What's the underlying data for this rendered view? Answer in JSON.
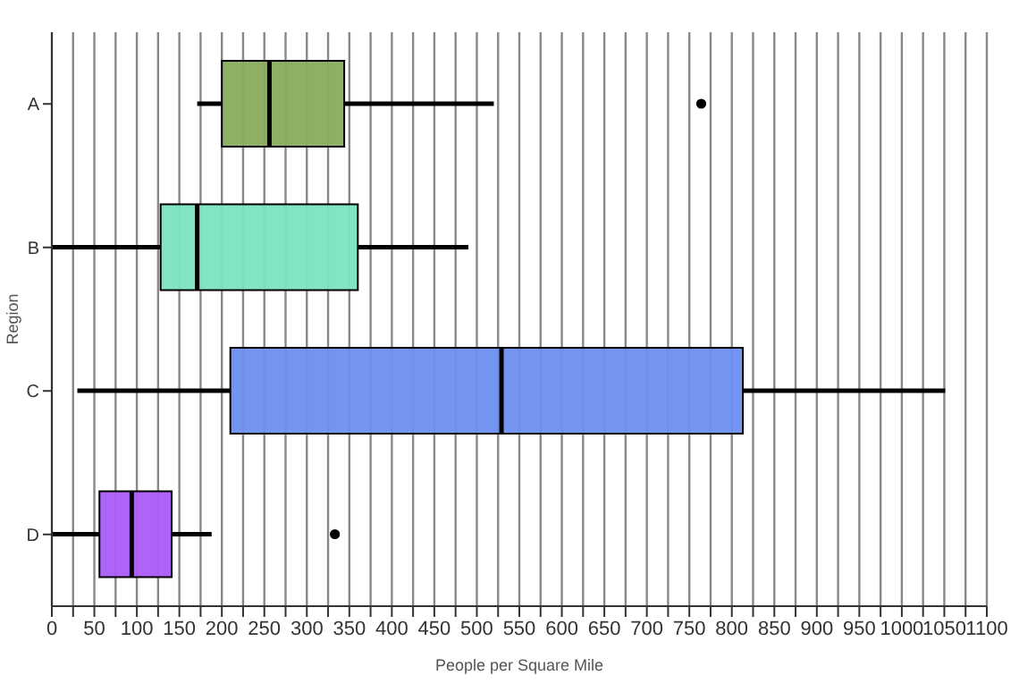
{
  "chart_data": {
    "type": "box",
    "orientation": "horizontal",
    "xlabel": "People per Square Mile",
    "ylabel": "Region",
    "categories": [
      "A",
      "B",
      "C",
      "D"
    ],
    "boxes": [
      {
        "low": 171,
        "q1": 200,
        "median": 256,
        "q3": 344,
        "high": 520,
        "outliers": [
          764
        ]
      },
      {
        "low": 0,
        "q1": 128,
        "median": 171,
        "q3": 360,
        "high": 490
      },
      {
        "low": 30,
        "q1": 210,
        "median": 529,
        "q3": 813,
        "high": 1051
      },
      {
        "low": 0,
        "q1": 56,
        "median": 94,
        "q3": 141,
        "high": 188,
        "outliers": [
          333
        ]
      }
    ],
    "colors": [
      "#8aab5e",
      "#7be3c0",
      "#6b8ff0",
      "#a95cf7"
    ],
    "xlim": [
      0,
      1100
    ],
    "xticks": [
      0,
      {
        "value": 25,
        "label": null
      },
      50,
      {
        "value": 75,
        "label": null
      },
      100,
      {
        "value": 125,
        "label": null
      },
      150,
      {
        "value": 175,
        "label": null
      },
      200,
      {
        "value": 225,
        "label": null
      },
      250,
      {
        "value": 275,
        "label": null
      },
      300,
      {
        "value": 325,
        "label": null
      },
      350,
      {
        "value": 375,
        "label": null
      },
      400,
      {
        "value": 425,
        "label": null
      },
      450,
      {
        "value": 475,
        "label": null
      },
      500,
      {
        "value": 525,
        "label": null
      },
      550,
      {
        "value": 575,
        "label": null
      },
      600,
      {
        "value": 625,
        "label": null
      },
      650,
      {
        "value": 675,
        "label": null
      },
      700,
      {
        "value": 725,
        "label": null
      },
      750,
      {
        "value": 775,
        "label": null
      },
      800,
      {
        "value": 825,
        "label": null
      },
      850,
      {
        "value": 875,
        "label": null
      },
      900,
      {
        "value": 925,
        "label": null
      },
      950,
      {
        "value": 975,
        "label": null
      },
      1000,
      {
        "value": 1025,
        "label": null
      },
      1050,
      {
        "value": 1075,
        "label": null
      },
      1100
    ],
    "grid": "x"
  }
}
